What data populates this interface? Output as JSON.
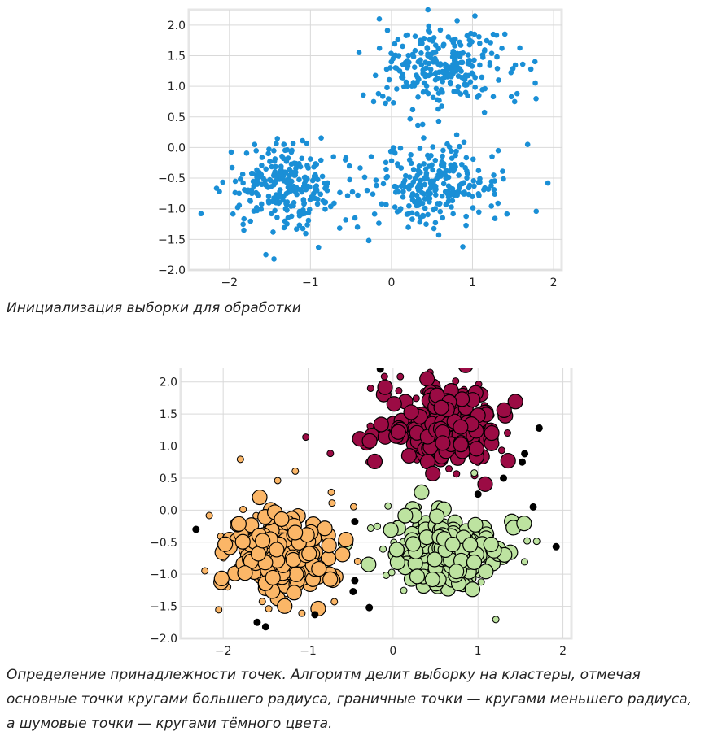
{
  "chart_data": [
    {
      "type": "scatter",
      "xlim": [
        -2.5,
        2.1
      ],
      "ylim": [
        -2.0,
        2.25
      ],
      "xticks": [
        -2,
        -1,
        0,
        1,
        2
      ],
      "yticks": [
        -2.0,
        -1.5,
        -1.0,
        -0.5,
        0.0,
        0.5,
        1.0,
        1.5,
        2.0
      ],
      "xtick_labels": [
        "−2",
        "−1",
        "0",
        "1",
        "2"
      ],
      "ytick_labels": [
        "−2.0",
        "−1.5",
        "−1.0",
        "−0.5",
        "0.0",
        "0.5",
        "1.0",
        "1.5",
        "2.0"
      ],
      "grid": true,
      "color": "#1a8fd6",
      "blobs": [
        {
          "center": [
            0.6,
            1.3
          ],
          "spread": [
            0.38,
            0.33
          ],
          "n": 250
        },
        {
          "center": [
            0.6,
            -0.6
          ],
          "spread": [
            0.38,
            0.32
          ],
          "n": 250
        },
        {
          "center": [
            -1.3,
            -0.65
          ],
          "spread": [
            0.36,
            0.34
          ],
          "n": 250
        }
      ],
      "points": [
        [
          -0.15,
          2.1
        ],
        [
          0.45,
          2.25
        ],
        [
          1.03,
          2.15
        ],
        [
          -0.4,
          1.55
        ],
        [
          1.72,
          1.28
        ],
        [
          1.55,
          0.88
        ],
        [
          1.52,
          0.75
        ],
        [
          1.93,
          -0.58
        ],
        [
          1.68,
          0.05
        ],
        [
          -2.35,
          -1.08
        ],
        [
          -0.28,
          -1.52
        ],
        [
          -0.3,
          -0.7
        ],
        [
          -1.55,
          -1.75
        ],
        [
          -1.45,
          -1.82
        ],
        [
          -0.9,
          -1.63
        ],
        [
          -0.45,
          -1.15
        ],
        [
          -0.42,
          -1.3
        ],
        [
          -0.52,
          -0.3
        ],
        [
          -0.22,
          0.75
        ],
        [
          0.88,
          -1.62
        ],
        [
          -0.25,
          -0.15
        ]
      ]
    },
    {
      "type": "scatter",
      "xlim": [
        -2.5,
        2.1
      ],
      "ylim": [
        -2.0,
        2.25
      ],
      "xticks": [
        -2,
        -1,
        0,
        1,
        2
      ],
      "yticks": [
        -2.0,
        -1.5,
        -1.0,
        -0.5,
        0.0,
        0.5,
        1.0,
        1.5,
        2.0
      ],
      "xtick_labels": [
        "−2",
        "−1",
        "0",
        "1",
        "2"
      ],
      "ytick_labels": [
        "−2.0",
        "−1.5",
        "−1.0",
        "−0.5",
        "0.0",
        "0.5",
        "1.0",
        "1.5",
        "2.0"
      ],
      "grid": true,
      "clusters": [
        {
          "center": [
            0.6,
            1.3
          ],
          "spread": [
            0.34,
            0.29
          ],
          "core_n": 190,
          "border_n": 45,
          "color": "#9b0b44"
        },
        {
          "center": [
            0.6,
            -0.6
          ],
          "spread": [
            0.34,
            0.28
          ],
          "core_n": 190,
          "border_n": 45,
          "color": "#bde3a0"
        },
        {
          "center": [
            -1.3,
            -0.65
          ],
          "spread": [
            0.32,
            0.3
          ],
          "core_n": 190,
          "border_n": 45,
          "color": "#fbb667"
        }
      ],
      "noise_color": "#000000",
      "noise": [
        [
          -0.15,
          2.2
        ],
        [
          1.72,
          1.28
        ],
        [
          1.55,
          0.88
        ],
        [
          1.52,
          0.75
        ],
        [
          1.92,
          -0.57
        ],
        [
          1.65,
          0.05
        ],
        [
          -2.32,
          -0.3
        ],
        [
          -0.45,
          -0.18
        ],
        [
          -0.28,
          -1.52
        ],
        [
          -0.45,
          -1.1
        ],
        [
          -0.47,
          -1.27
        ],
        [
          -1.6,
          -1.75
        ],
        [
          -1.5,
          -1.82
        ],
        [
          -0.92,
          -1.63
        ],
        [
          1.0,
          0.25
        ],
        [
          1.3,
          0.5
        ]
      ]
    }
  ],
  "captions": {
    "first": "Инициализация выборки для обработки",
    "second": "Определение принадлежности точек. Алгоритм делит выборку на кластеры, отмечая основные точки кругами большего радиуса, граничные точки — кругами меньшего радиуса, а шумовые точки — кругами тёмного цвета."
  }
}
